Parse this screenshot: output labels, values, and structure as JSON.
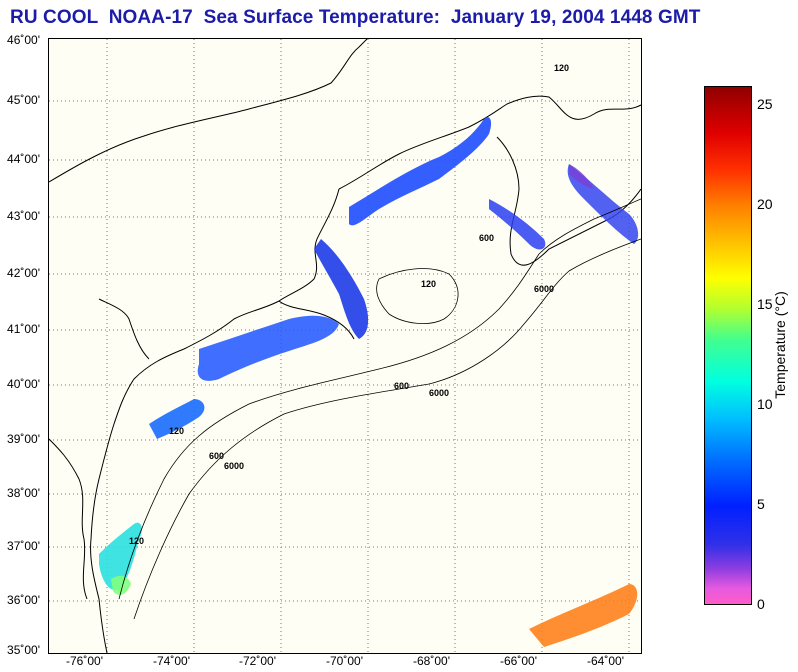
{
  "title": "RU COOL  NOAA-17  Sea Surface Temperature:  January 19, 2004 1448 GMT",
  "map": {
    "lat_labels": [
      "46˚00'",
      "45˚00'",
      "44˚00'",
      "43˚00'",
      "42˚00'",
      "41˚00'",
      "40˚00'",
      "39˚00'",
      "38˚00'",
      "37˚00'",
      "36˚00'",
      "35˚00'"
    ],
    "lon_labels": [
      "-76˚00'",
      "-74˚00'",
      "-72˚00'",
      "-70˚00'",
      "-68˚00'",
      "-66˚00'",
      "-64˚00'"
    ],
    "lat_range": [
      35,
      46
    ],
    "lon_range": [
      -77,
      -63.4
    ],
    "gridlines": "dotted",
    "contour_labels": [
      "120",
      "600",
      "6000"
    ]
  },
  "colorbar": {
    "label": "Temperature (°C)",
    "ticks": [
      "25",
      "20",
      "15",
      "10",
      "5",
      "0"
    ],
    "range": [
      0,
      26
    ],
    "colormap_stops": [
      "#ff5cc8",
      "#8a3ce0",
      "#0020ff",
      "#00c0ff",
      "#40ff90",
      "#ffff00",
      "#ff8000",
      "#e00000",
      "#900000"
    ]
  }
}
